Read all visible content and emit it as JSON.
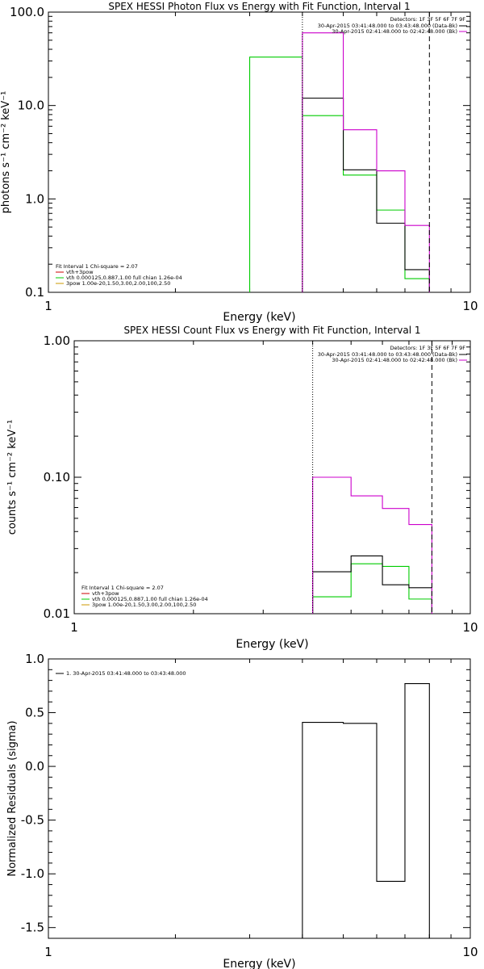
{
  "chart_data": [
    {
      "type": "line",
      "title": "SPEX HESSI Photon Flux vs Energy with Fit Function, Interval 1",
      "xlabel": "Energy (keV)",
      "ylabel": "photons s⁻¹ cm⁻² keV⁻¹",
      "xscale": "log",
      "yscale": "log",
      "xlim": [
        1,
        10
      ],
      "ylim": [
        0.1,
        100
      ],
      "xticks": [
        {
          "v": 1,
          "label": "1"
        },
        {
          "v": 10,
          "label": "10"
        }
      ],
      "yticks": [
        {
          "v": 0.1,
          "label": "0.1"
        },
        {
          "v": 1,
          "label": "1.0"
        },
        {
          "v": 10,
          "label": "10.0"
        },
        {
          "v": 100,
          "label": "100.0"
        }
      ],
      "vlines": [
        {
          "x": 4.0,
          "style": "dotted"
        },
        {
          "x": 8.0,
          "style": "dashed"
        }
      ],
      "series": [
        {
          "color": "#00cc00",
          "edges": [
            3.0,
            4.0,
            5.0,
            6.0,
            7.0,
            8.0
          ],
          "values": [
            33.0,
            7.8,
            1.8,
            0.76,
            0.14
          ]
        },
        {
          "color": "#000000",
          "edges": [
            4.0,
            5.0,
            6.0,
            7.0,
            8.0
          ],
          "values": [
            12.0,
            2.05,
            0.55,
            0.175
          ]
        },
        {
          "color": "#cc00cc",
          "edges": [
            4.0,
            5.0,
            6.0,
            7.0,
            8.0
          ],
          "values": [
            60.0,
            5.5,
            2.0,
            0.52
          ]
        }
      ],
      "legend_right": {
        "position": "top-right",
        "header": "Detectors: 1F 3F 5F 6F 7F 9F",
        "lines": [
          {
            "text": "30-Apr-2015 03:41:48.000 to 03:43:48.000 (Data-Bk)",
            "color": "#000000"
          },
          {
            "text": "30-Apr-2015 02:41:48.000 to 02:42:48.000 (Bk)",
            "color": "#cc00cc"
          }
        ]
      },
      "legend_left": {
        "position": "bottom-left",
        "header": "Fit Interval  1    Chi-square = 2.07",
        "lines": [
          {
            "text": "vth+3pow",
            "color": "#cc0000"
          },
          {
            "text": "vth 0.000125,0.887,1.00   full chian 1.26e-04",
            "color": "#00cc00"
          },
          {
            "text": "3pow 1.00e-20,1.50,3.00,2.00,100,2.50",
            "color": "#cc9900"
          }
        ]
      }
    },
    {
      "type": "line",
      "title": "SPEX HESSI Count Flux vs Energy with Fit Function, Interval 1",
      "xlabel": "Energy (keV)",
      "ylabel": "counts s⁻¹ cm⁻² keV⁻¹",
      "xscale": "log",
      "yscale": "log",
      "xlim": [
        1,
        10
      ],
      "ylim": [
        0.01,
        1
      ],
      "xticks": [
        {
          "v": 1,
          "label": "1"
        },
        {
          "v": 10,
          "label": "10"
        }
      ],
      "yticks": [
        {
          "v": 0.01,
          "label": "0.01"
        },
        {
          "v": 0.1,
          "label": "0.10"
        },
        {
          "v": 1,
          "label": "1.00"
        }
      ],
      "vlines": [
        {
          "x": 4.0,
          "style": "dotted"
        },
        {
          "x": 8.0,
          "style": "dashed"
        }
      ],
      "series": [
        {
          "color": "#00cc00",
          "edges": [
            4.0,
            5.0,
            6.0,
            7.0,
            8.0
          ],
          "values": [
            0.0133,
            0.0232,
            0.0222,
            0.0128
          ]
        },
        {
          "color": "#000000",
          "edges": [
            4.0,
            5.0,
            6.0,
            7.0,
            8.0
          ],
          "values": [
            0.0203,
            0.0265,
            0.0163,
            0.0155
          ]
        },
        {
          "color": "#cc00cc",
          "edges": [
            4.0,
            5.0,
            6.0,
            7.0,
            8.0
          ],
          "values": [
            0.1,
            0.073,
            0.059,
            0.045
          ]
        }
      ],
      "legend_right": {
        "position": "top-right",
        "header": "Detectors: 1F 3F 5F 6F 7F 9F",
        "lines": [
          {
            "text": "30-Apr-2015 03:41:48.000 to 03:43:48.000 (Data-Bk)",
            "color": "#000000"
          },
          {
            "text": "30-Apr-2015 02:41:48.000 to 02:42:48.000 (Bk)",
            "color": "#cc00cc"
          }
        ]
      },
      "legend_left": {
        "position": "bottom-left",
        "header": "Fit Interval  1    Chi-square = 2.07",
        "lines": [
          {
            "text": "vth+3pow",
            "color": "#cc0000"
          },
          {
            "text": "vth 0.000125,0.887,1.00   full chian 1.26e-04",
            "color": "#00cc00"
          },
          {
            "text": "3pow 1.00e-20,1.50,3.00,2.00,100,2.50",
            "color": "#cc9900"
          }
        ]
      }
    },
    {
      "type": "line",
      "title": "",
      "xlabel": "Energy (keV)",
      "ylabel": "Normalized Residuals (sigma)",
      "xscale": "log",
      "yscale": "linear",
      "xlim": [
        1,
        10
      ],
      "ylim": [
        -1.6,
        1.0
      ],
      "xticks": [
        {
          "v": 1,
          "label": "1"
        },
        {
          "v": 10,
          "label": "10"
        }
      ],
      "yticks": [
        {
          "v": -1.5,
          "label": "-1.5"
        },
        {
          "v": -1.0,
          "label": "-1.0"
        },
        {
          "v": -0.5,
          "label": "-0.5"
        },
        {
          "v": 0.0,
          "label": "0.0"
        },
        {
          "v": 0.5,
          "label": "0.5"
        },
        {
          "v": 1.0,
          "label": "1.0"
        }
      ],
      "vlines": [],
      "series": [
        {
          "color": "#000000",
          "edges": [
            4.0,
            5.0,
            6.0,
            7.0,
            8.0
          ],
          "values": [
            0.41,
            0.4,
            -1.07,
            0.77
          ]
        }
      ],
      "legend_right": null,
      "legend_left": {
        "position": "top-left",
        "header": "",
        "lines": [
          {
            "text": "1. 30-Apr-2015 03:41:48.000 to 03:43:48.000",
            "color": "#000000"
          }
        ]
      }
    }
  ]
}
